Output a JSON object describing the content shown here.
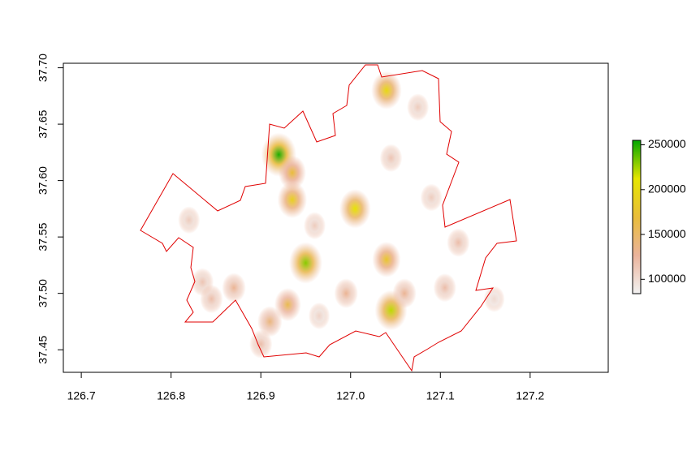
{
  "chart_data": {
    "type": "raster",
    "xlim": [
      126.68,
      127.287
    ],
    "ylim": [
      37.43,
      37.704
    ],
    "xticks": [
      {
        "value": 126.7,
        "label": "126.7"
      },
      {
        "value": 126.8,
        "label": "126.8"
      },
      {
        "value": 126.9,
        "label": "126.9"
      },
      {
        "value": 127.0,
        "label": "127.0"
      },
      {
        "value": 127.1,
        "label": "127.1"
      },
      {
        "value": 127.2,
        "label": "127.2"
      }
    ],
    "yticks": [
      {
        "value": 37.45,
        "label": "37.45"
      },
      {
        "value": 37.5,
        "label": "37.50"
      },
      {
        "value": 37.55,
        "label": "37.55"
      },
      {
        "value": 37.6,
        "label": "37.60"
      },
      {
        "value": 37.65,
        "label": "37.65"
      },
      {
        "value": 37.7,
        "label": "37.70"
      }
    ],
    "zlim": [
      84000,
      255000
    ],
    "zticks": [
      100000,
      150000,
      200000,
      250000
    ],
    "colors": [
      "#F2F2F2",
      "#EBB39B",
      "#E9BD3A",
      "#E6E600",
      "#00A600"
    ],
    "border_color": "#E00000",
    "points": [
      {
        "x": 127.04,
        "y": 37.68,
        "value": 200000
      },
      {
        "x": 127.075,
        "y": 37.665,
        "value": 110000
      },
      {
        "x": 126.92,
        "y": 37.623,
        "value": 250000
      },
      {
        "x": 126.935,
        "y": 37.607,
        "value": 170000
      },
      {
        "x": 126.935,
        "y": 37.583,
        "value": 190000
      },
      {
        "x": 127.005,
        "y": 37.575,
        "value": 210000
      },
      {
        "x": 126.95,
        "y": 37.527,
        "value": 230000
      },
      {
        "x": 127.04,
        "y": 37.53,
        "value": 180000
      },
      {
        "x": 127.045,
        "y": 37.485,
        "value": 220000
      },
      {
        "x": 126.93,
        "y": 37.49,
        "value": 160000
      },
      {
        "x": 126.91,
        "y": 37.475,
        "value": 140000
      },
      {
        "x": 126.9,
        "y": 37.455,
        "value": 120000
      },
      {
        "x": 126.82,
        "y": 37.565,
        "value": 110000
      },
      {
        "x": 126.835,
        "y": 37.51,
        "value": 115000
      },
      {
        "x": 126.845,
        "y": 37.495,
        "value": 120000
      },
      {
        "x": 126.87,
        "y": 37.505,
        "value": 130000
      },
      {
        "x": 126.995,
        "y": 37.5,
        "value": 130000
      },
      {
        "x": 127.06,
        "y": 37.5,
        "value": 130000
      },
      {
        "x": 127.105,
        "y": 37.505,
        "value": 120000
      },
      {
        "x": 127.12,
        "y": 37.545,
        "value": 120000
      },
      {
        "x": 127.045,
        "y": 37.62,
        "value": 115000
      },
      {
        "x": 127.09,
        "y": 37.585,
        "value": 110000
      },
      {
        "x": 126.96,
        "y": 37.56,
        "value": 110000
      },
      {
        "x": 126.965,
        "y": 37.48,
        "value": 105000
      },
      {
        "x": 127.16,
        "y": 37.495,
        "value": 100000
      }
    ]
  }
}
